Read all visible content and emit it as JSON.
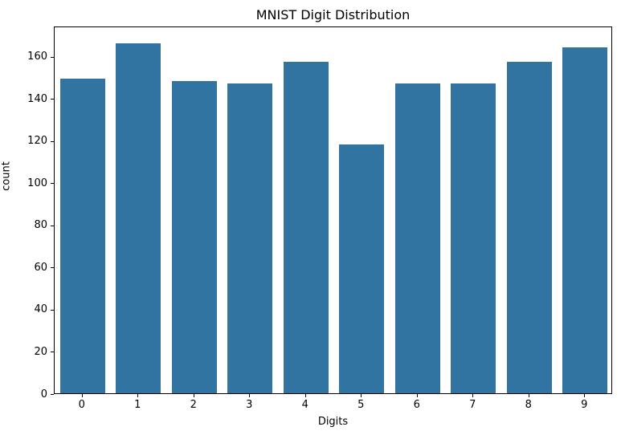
{
  "chart_data": {
    "type": "bar",
    "title": "MNIST Digit Distribution",
    "xlabel": "Digits",
    "ylabel": "count",
    "categories": [
      "0",
      "1",
      "2",
      "3",
      "4",
      "5",
      "6",
      "7",
      "8",
      "9"
    ],
    "values": [
      149,
      166,
      148,
      147,
      157,
      118,
      147,
      147,
      157,
      164
    ],
    "ylim": [
      0,
      174.3
    ],
    "yticks": [
      0,
      20,
      40,
      60,
      80,
      100,
      120,
      140,
      160
    ],
    "bar_color": "#3274a1",
    "axis_color": "#000000",
    "background_color": "#ffffff",
    "grid": false,
    "legend": null
  }
}
